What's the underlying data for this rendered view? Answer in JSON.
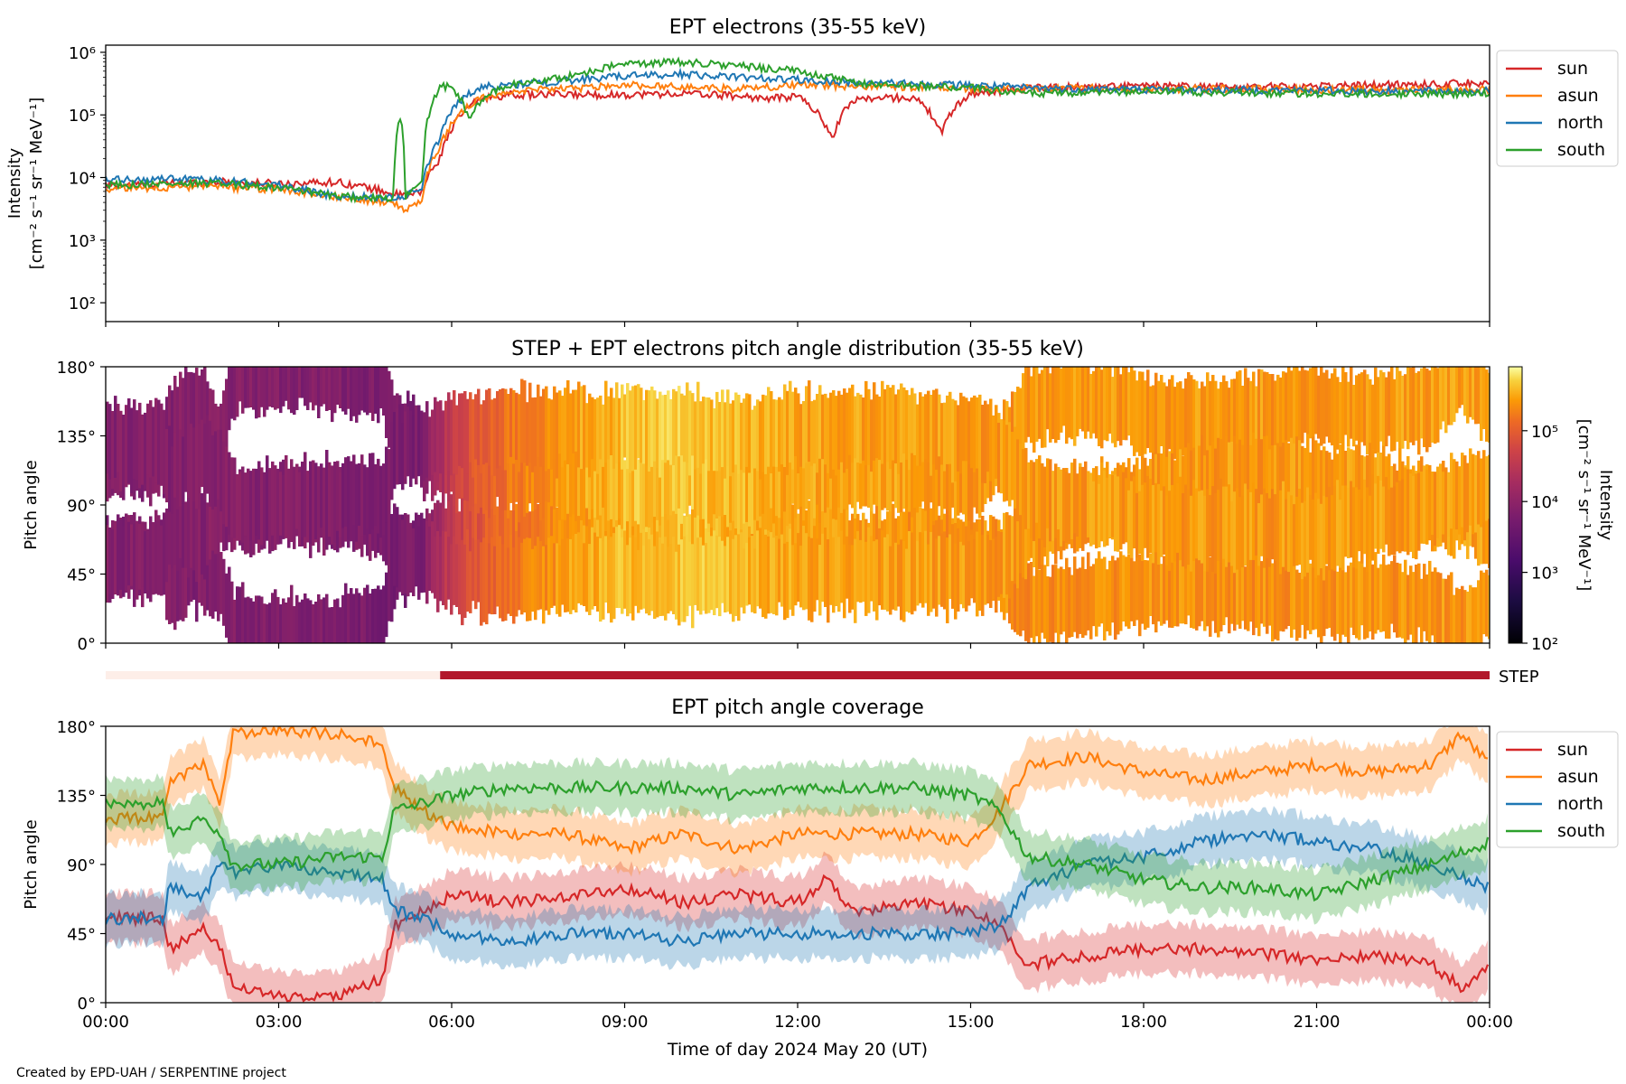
{
  "footer": "Created by EPD-UAH / SERPENTINE project",
  "colors": {
    "sun": "#d62728",
    "asun": "#ff7f0e",
    "north": "#1f77b4",
    "south": "#2ca02c",
    "step_bar": "#b2182b",
    "step_bar_light": "#fdeee8"
  },
  "chart_data": [
    {
      "type": "line",
      "title": "EPT electrons (35-55 keV)",
      "ylabel_line1": "Intensity",
      "ylabel_line2": "[cm⁻² s⁻¹ sr⁻¹ MeV⁻¹]",
      "yscale": "log",
      "ylim": [
        50,
        1300000
      ],
      "yticks": [
        "10²",
        "10³",
        "10⁴",
        "10⁵",
        "10⁶"
      ],
      "ytick_values": [
        100,
        1000,
        10000,
        100000,
        1000000
      ],
      "xlim_hours": [
        0,
        24
      ],
      "legend_position": "right",
      "series": [
        {
          "name": "sun",
          "x": [
            0,
            1,
            2,
            3,
            4,
            5,
            5.2,
            5.5,
            5.8,
            6,
            6.5,
            7,
            8,
            9,
            10,
            11,
            11.5,
            12,
            12.4,
            12.6,
            13,
            14,
            14.5,
            15,
            16,
            17,
            18,
            19,
            20,
            21,
            22,
            23,
            23.5,
            24
          ],
          "y": [
            7500,
            8000,
            8500,
            8000,
            8500,
            5500,
            5000,
            6000,
            20000,
            60000,
            180000,
            210000,
            210000,
            210000,
            220000,
            200000,
            180000,
            200000,
            90000,
            40000,
            180000,
            190000,
            50000,
            220000,
            270000,
            280000,
            290000,
            280000,
            280000,
            290000,
            300000,
            310000,
            320000,
            330000
          ]
        },
        {
          "name": "asun",
          "x": [
            0,
            1,
            2,
            3,
            4,
            5,
            5.2,
            5.5,
            5.8,
            6,
            6.5,
            7,
            8,
            9,
            10,
            11,
            12,
            13,
            14,
            15,
            16,
            17,
            18,
            19,
            20,
            21,
            22,
            23,
            24
          ],
          "y": [
            6500,
            7000,
            7000,
            6500,
            5000,
            3800,
            3000,
            4500,
            30000,
            70000,
            180000,
            240000,
            260000,
            300000,
            280000,
            260000,
            300000,
            290000,
            280000,
            260000,
            270000,
            270000,
            260000,
            260000,
            260000,
            255000,
            250000,
            250000,
            250000
          ]
        },
        {
          "name": "north",
          "x": [
            0,
            1,
            2,
            3,
            4,
            5,
            5.2,
            5.5,
            5.8,
            6,
            6.5,
            7,
            8,
            9,
            10,
            11,
            12,
            13,
            14,
            15,
            16,
            17,
            18,
            19,
            20,
            21,
            22,
            23,
            24
          ],
          "y": [
            9000,
            9500,
            9000,
            7500,
            5000,
            4800,
            5000,
            7000,
            40000,
            120000,
            280000,
            300000,
            350000,
            420000,
            450000,
            400000,
            360000,
            330000,
            310000,
            300000,
            270000,
            260000,
            255000,
            250000,
            250000,
            245000,
            240000,
            240000,
            240000
          ]
        },
        {
          "name": "south",
          "x": [
            0,
            1,
            2,
            3,
            4,
            5,
            5.1,
            5.2,
            5.5,
            5.8,
            6,
            6.3,
            6.6,
            7,
            8,
            9,
            10,
            11,
            12,
            13,
            14,
            15,
            16,
            17,
            18,
            19,
            20,
            21,
            22,
            23,
            24
          ],
          "y": [
            7500,
            8000,
            8000,
            7000,
            5000,
            4500,
            95000,
            5000,
            8000,
            280000,
            280000,
            80000,
            200000,
            300000,
            400000,
            650000,
            700000,
            600000,
            500000,
            320000,
            290000,
            270000,
            220000,
            220000,
            240000,
            230000,
            225000,
            220000,
            220000,
            220000,
            220000
          ]
        }
      ]
    },
    {
      "type": "heatmap",
      "title": "STEP + EPT electrons pitch angle distribution (35-55 keV)",
      "ylabel": "Pitch angle",
      "yticks": [
        "0°",
        "45°",
        "90°",
        "135°",
        "180°"
      ],
      "ytick_values": [
        0,
        45,
        90,
        135,
        180
      ],
      "xlim_hours": [
        0,
        24
      ],
      "colorbar": {
        "label_line1": "Intensity",
        "label_line2": "[cm⁻² s⁻¹ sr⁻¹ MeV⁻¹]",
        "scale": "log",
        "range": [
          100,
          800000
        ],
        "ticks": [
          "10²",
          "10³",
          "10⁴",
          "10⁵"
        ],
        "tick_values": [
          100,
          1000,
          10000,
          100000
        ],
        "colormap": "inferno"
      },
      "intensity_profile": {
        "x": [
          0,
          2,
          5.5,
          5.8,
          7,
          9,
          10,
          12,
          14,
          15.5,
          18,
          21,
          24
        ],
        "y": [
          7500,
          8000,
          6000,
          20000,
          150000,
          400000,
          450000,
          300000,
          280000,
          250000,
          260000,
          260000,
          280000
        ]
      }
    },
    {
      "type": "bar",
      "label": "STEP",
      "segments": [
        {
          "start_hour": 0,
          "end_hour": 5.8,
          "state": "off"
        },
        {
          "start_hour": 5.8,
          "end_hour": 24,
          "state": "on"
        }
      ]
    },
    {
      "type": "area",
      "title": "EPT pitch angle coverage",
      "ylabel": "Pitch angle",
      "xlabel": "Time of day 2024 May 20 (UT)",
      "ylim": [
        0,
        180
      ],
      "yticks": [
        "0°",
        "45°",
        "90°",
        "135°",
        "180°"
      ],
      "ytick_values": [
        0,
        45,
        90,
        135,
        180
      ],
      "xlim_hours": [
        0,
        24
      ],
      "xticks": [
        "00:00",
        "03:00",
        "06:00",
        "09:00",
        "12:00",
        "15:00",
        "18:00",
        "21:00",
        "00:00"
      ],
      "xtick_hours": [
        0,
        3,
        6,
        9,
        12,
        15,
        18,
        21,
        24
      ],
      "legend_position": "right",
      "series": [
        {
          "name": "sun",
          "x": [
            0,
            1,
            1.1,
            1.7,
            2,
            2.2,
            3,
            4,
            4.8,
            5,
            5.5,
            6,
            7,
            8,
            9,
            10,
            11,
            12,
            12.5,
            13,
            14,
            15,
            15.5,
            16,
            17,
            18,
            19,
            20,
            21,
            22,
            23,
            23.5,
            24
          ],
          "y": [
            55,
            55,
            35,
            50,
            35,
            10,
            5,
            5,
            15,
            50,
            60,
            70,
            65,
            70,
            75,
            65,
            70,
            65,
            80,
            60,
            65,
            60,
            50,
            25,
            30,
            35,
            35,
            32,
            28,
            30,
            25,
            10,
            25
          ]
        },
        {
          "name": "asun",
          "x": [
            0,
            1,
            1.1,
            1.7,
            2,
            2.2,
            3,
            4,
            4.8,
            5,
            5.5,
            6,
            7,
            8,
            9,
            10,
            11,
            12,
            13,
            14,
            15,
            15.5,
            16,
            17,
            18,
            19,
            20,
            21,
            22,
            23,
            23.5,
            24
          ],
          "y": [
            120,
            120,
            145,
            155,
            130,
            175,
            178,
            175,
            170,
            140,
            125,
            115,
            110,
            110,
            100,
            110,
            100,
            110,
            110,
            110,
            105,
            125,
            155,
            160,
            150,
            145,
            150,
            155,
            150,
            155,
            175,
            155
          ]
        },
        {
          "name": "north",
          "x": [
            0,
            1,
            1.1,
            1.7,
            2,
            2.2,
            3,
            4,
            4.8,
            5,
            5.5,
            6,
            7,
            8,
            9,
            10,
            11,
            12,
            13,
            14,
            15,
            15.5,
            16,
            17,
            18,
            19,
            20,
            21,
            22,
            23,
            24
          ],
          "y": [
            55,
            55,
            75,
            70,
            90,
            85,
            90,
            85,
            80,
            60,
            55,
            45,
            40,
            45,
            45,
            40,
            45,
            45,
            45,
            45,
            45,
            50,
            75,
            90,
            95,
            105,
            110,
            105,
            100,
            90,
            75
          ]
        },
        {
          "name": "south",
          "x": [
            0,
            1,
            1.1,
            1.7,
            2,
            2.2,
            3,
            4,
            4.8,
            5,
            5.5,
            6,
            7,
            8,
            9,
            10,
            11,
            12,
            13,
            14,
            15,
            15.5,
            16,
            17,
            18,
            19,
            20,
            21,
            22,
            23,
            24
          ],
          "y": [
            130,
            130,
            110,
            120,
            110,
            90,
            90,
            95,
            95,
            125,
            130,
            135,
            140,
            140,
            140,
            140,
            135,
            140,
            140,
            140,
            135,
            125,
            95,
            90,
            80,
            75,
            75,
            70,
            80,
            90,
            105
          ]
        }
      ]
    }
  ]
}
